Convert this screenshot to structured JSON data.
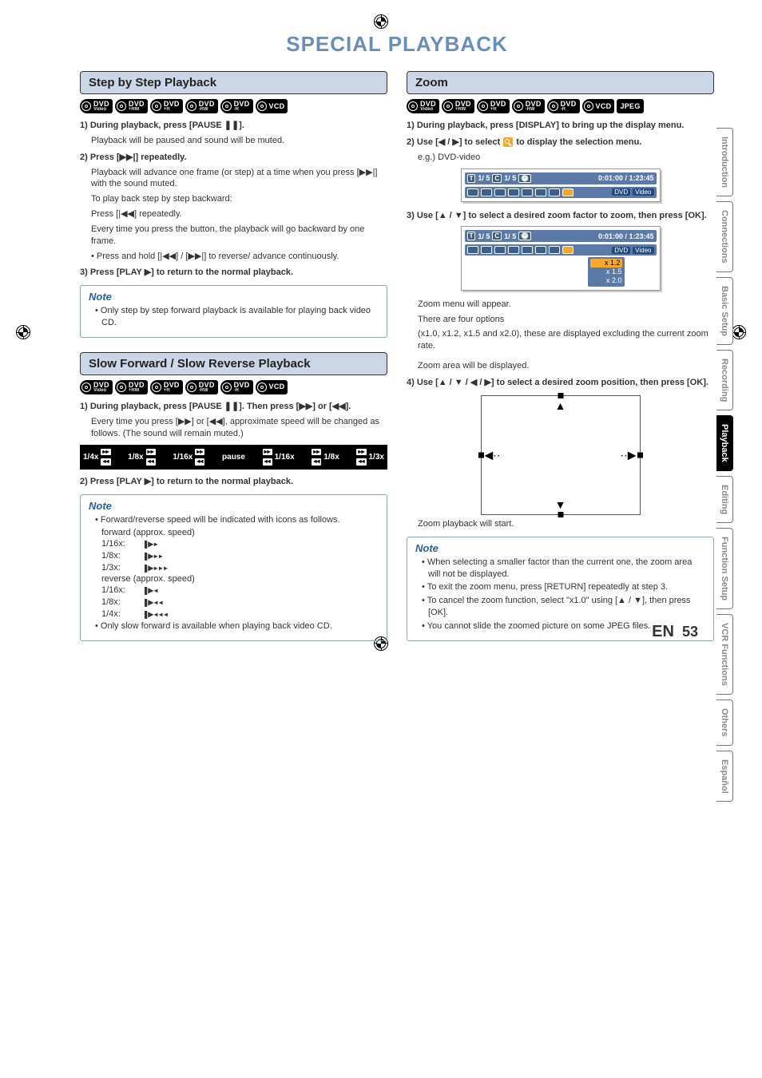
{
  "page_title": "SPECIAL PLAYBACK",
  "page_title_color": "#6a8fb5",
  "page_lang": "EN",
  "page_number": "53",
  "side_tabs": [
    {
      "label": "Introduction",
      "active": false
    },
    {
      "label": "Connections",
      "active": false
    },
    {
      "label": "Basic Setup",
      "active": false
    },
    {
      "label": "Recording",
      "active": false
    },
    {
      "label": "Playback",
      "active": true
    },
    {
      "label": "Editing",
      "active": false
    },
    {
      "label": "Function Setup",
      "active": false
    },
    {
      "label": "VCR Functions",
      "active": false
    },
    {
      "label": "Others",
      "active": false
    },
    {
      "label": "Español",
      "active": false
    }
  ],
  "formats_all": [
    {
      "main": "DVD",
      "sub": "Video"
    },
    {
      "main": "DVD",
      "sub": "+RW"
    },
    {
      "main": "DVD",
      "sub": "+R"
    },
    {
      "main": "DVD",
      "sub": "-RW"
    },
    {
      "main": "DVD",
      "sub": "-R"
    },
    {
      "main": "VCD",
      "sub": ""
    }
  ],
  "formats_zoom": [
    {
      "main": "DVD",
      "sub": "Video"
    },
    {
      "main": "DVD",
      "sub": "+RW"
    },
    {
      "main": "DVD",
      "sub": "+R"
    },
    {
      "main": "DVD",
      "sub": "-RW"
    },
    {
      "main": "DVD",
      "sub": "-R"
    },
    {
      "main": "VCD",
      "sub": ""
    },
    {
      "main": "JPEG",
      "sub": "",
      "jpeg": true
    }
  ],
  "step_section": {
    "title": "Step by Step Playback",
    "s1_lead": "1) During playback, press [PAUSE ❚❚].",
    "s1_body": "Playback will be paused and sound will be muted.",
    "s2_lead": "2) Press [▶▶|] repeatedly.",
    "s2_body1": "Playback will advance one frame (or step) at a time when you press [▶▶|] with the sound muted.",
    "s2_body2": "To play back step by step backward:",
    "s2_body3": "Press [|◀◀] repeatedly.",
    "s2_body4": "Every time you press the button, the playback will go backward by one frame.",
    "s2_body5": "• Press and hold [|◀◀] / [▶▶|] to reverse/ advance continuously.",
    "s3_lead": "3) Press [PLAY ▶] to return to the normal playback.",
    "note_title": "Note",
    "note_items": [
      "Only step by step forward playback is available for playing back video CD."
    ]
  },
  "slow_section": {
    "title": "Slow Forward / Slow Reverse Playback",
    "s1_lead": "1) During playback, press [PAUSE ❚❚]. Then press [▶▶] or [◀◀].",
    "s1_body": "Every time you press [▶▶] or [◀◀], approximate speed will be changed as follows. (The sound will remain muted.)",
    "speed_labels": [
      "1/4x",
      "1/8x",
      "1/16x",
      "pause",
      "1/16x",
      "1/8x",
      "1/3x"
    ],
    "s2_lead": "2) Press [PLAY ▶] to return to the normal playback.",
    "note_title": "Note",
    "note_intro": "Forward/reverse speed will be indicated with icons as follows.",
    "fwd_label": "forward (approx. speed)",
    "rev_label": "reverse (approx. speed)",
    "fwd_rows": [
      {
        "spd": "1/16x:",
        "icon": "❚▶▸"
      },
      {
        "spd": "1/8x:",
        "icon": "❚▶▸▸"
      },
      {
        "spd": "1/3x:",
        "icon": "❚▶▸▸▸"
      }
    ],
    "rev_rows": [
      {
        "spd": "1/16x:",
        "icon": "❚▶◂"
      },
      {
        "spd": "1/8x:",
        "icon": "❚▶◂◂"
      },
      {
        "spd": "1/4x:",
        "icon": "❚▶◂◂◂"
      }
    ],
    "note_last": "Only slow forward is available when playing back video CD."
  },
  "zoom_section": {
    "title": "Zoom",
    "s1_lead": "1) During playback, press [DISPLAY] to bring up the display menu.",
    "s2_lead_a": "2) Use [◀ / ▶] to select ",
    "s2_lead_b": " to display the selection menu.",
    "s2_body": "e.g.) DVD-video",
    "s3_lead": "3) Use [▲ / ▼] to select a desired zoom factor to zoom, then press [OK].",
    "s3_body1": "Zoom menu will appear.",
    "s3_body2": "There are four options",
    "s3_body3": "(x1.0, x1.2, x1.5 and x2.0), these are displayed excluding the current zoom rate.",
    "s3_body4": "Zoom area will be displayed.",
    "s4_lead": "4) Use [▲ / ▼ / ◀ / ▶] to select a desired zoom position, then press [OK].",
    "s4_body": "Zoom playback will start.",
    "note_title": "Note",
    "note_items": [
      "When selecting a smaller factor than the current one, the zoom area will not be displayed.",
      "To exit the zoom menu, press [RETURN] repeatedly at step 3.",
      "To cancel the zoom function, select \"x1.0\" using [▲ / ▼], then press [OK].",
      "You cannot slide the zoomed picture on some JPEG files."
    ],
    "osd": {
      "title_counter": "1/ 5",
      "chapter_counter": "1/ 5",
      "time": "0:01:00 / 1:23:45",
      "tags": [
        "DVD",
        "Video"
      ],
      "zoom_options": [
        "x 1.2",
        "x 1.5",
        "x 2.0"
      ]
    }
  }
}
